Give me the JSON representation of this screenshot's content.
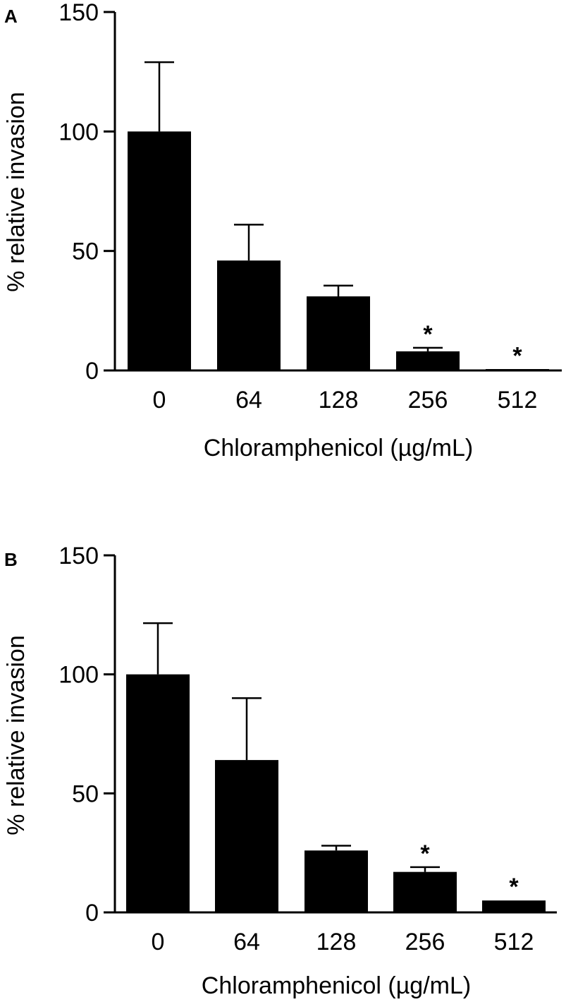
{
  "chart_data": [
    {
      "type": "bar",
      "panel": "A",
      "categories": [
        "0",
        "64",
        "128",
        "256",
        "512"
      ],
      "values": [
        100,
        46,
        31,
        8,
        0.5
      ],
      "error_upper": [
        129,
        61,
        35.5,
        9.5,
        0.5
      ],
      "significance": [
        "",
        "",
        "",
        "*",
        "*"
      ],
      "xlabel": "Chloramphenicol (µg/mL)",
      "ylabel": "% relative invasion",
      "ylim": [
        0,
        150
      ],
      "yticks": [
        "0",
        "50",
        "100",
        "150"
      ],
      "grid": false,
      "bar_color": "#000000"
    },
    {
      "type": "bar",
      "panel": "B",
      "categories": [
        "0",
        "64",
        "128",
        "256",
        "512"
      ],
      "values": [
        100,
        64,
        26,
        17,
        5
      ],
      "error_upper": [
        121.5,
        90,
        28,
        19,
        5
      ],
      "significance": [
        "",
        "",
        "",
        "*",
        "*"
      ],
      "xlabel": "Chloramphenicol (µg/mL)",
      "ylabel": "% relative invasion",
      "ylim": [
        0,
        150
      ],
      "yticks": [
        "0",
        "50",
        "100",
        "150"
      ],
      "grid": false,
      "bar_color": "#000000"
    }
  ]
}
